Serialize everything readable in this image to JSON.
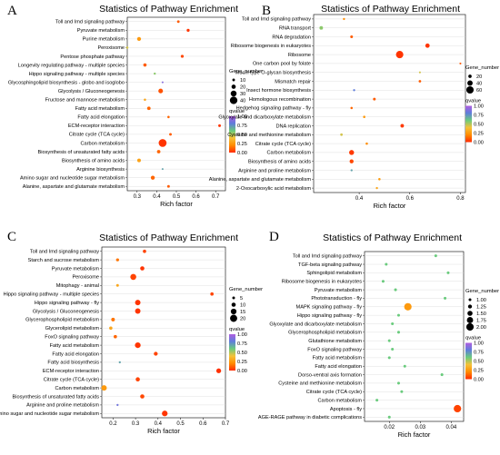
{
  "chart_data": [
    {
      "type": "scatter",
      "panel": "A",
      "title": "Statistics of Pathway Enrichment",
      "xlabel": "Rich factor",
      "xlim": [
        0.25,
        0.75
      ],
      "xticks": [
        0.3,
        0.4,
        0.5,
        0.6,
        0.7
      ],
      "xtick_labels": [
        "0.3",
        "0.4",
        "0.5",
        "0.6",
        "0.7"
      ],
      "size_legend_title": "Gene_number",
      "size_levels": [
        10,
        20,
        30,
        40
      ],
      "size_domain": [
        5,
        45
      ],
      "color_legend_title": "qvalue",
      "color_ticks": [
        "1.00",
        "0.75",
        "0.50",
        "0.25",
        "0.00"
      ],
      "categories": [
        "Toll and Imd signaling pathway",
        "Pyruvate metabolism",
        "Purine metabolism",
        "Peroxisome",
        "Pentose phosphate pathway",
        "Longevity regulating pathway - multiple species",
        "Hippo signaling pathway - multiple species",
        "Glycosphingolipid biosynthesis - globo and isoglobo",
        "Glycolysis / Gluconeogenesis",
        "Fructose and mannose metabolism",
        "Fatty acid metabolism",
        "Fatty acid elongation",
        "ECM-receptor interaction",
        "Citrate cycle (TCA cycle)",
        "Carbon metabolism",
        "Biosynthesis of unsaturated fatty acids",
        "Biosynthesis of amino acids",
        "Arginine biosynthesis",
        "Amino sugar and nucleotide sugar metabolism",
        "Alanine, aspartate and glutamate metabolism"
      ],
      "points": [
        {
          "x": 0.51,
          "size": 10,
          "q": 0.1
        },
        {
          "x": 0.56,
          "size": 12,
          "q": 0.02
        },
        {
          "x": 0.31,
          "size": 18,
          "q": 0.25
        },
        {
          "x": 0.25,
          "size": 8,
          "q": 0.45
        },
        {
          "x": 0.53,
          "size": 12,
          "q": 0.06
        },
        {
          "x": 0.34,
          "size": 14,
          "q": 0.1
        },
        {
          "x": 0.39,
          "size": 7,
          "q": 0.55
        },
        {
          "x": 0.43,
          "size": 5,
          "q": 0.9
        },
        {
          "x": 0.42,
          "size": 22,
          "q": 0.08
        },
        {
          "x": 0.34,
          "size": 8,
          "q": 0.3
        },
        {
          "x": 0.36,
          "size": 15,
          "q": 0.12
        },
        {
          "x": 0.46,
          "size": 8,
          "q": 0.12
        },
        {
          "x": 0.72,
          "size": 10,
          "q": 0.02
        },
        {
          "x": 0.47,
          "size": 10,
          "q": 0.1
        },
        {
          "x": 0.43,
          "size": 42,
          "q": 0.02
        },
        {
          "x": 0.41,
          "size": 15,
          "q": 0.12
        },
        {
          "x": 0.31,
          "size": 16,
          "q": 0.28
        },
        {
          "x": 0.43,
          "size": 5,
          "q": 0.7
        },
        {
          "x": 0.38,
          "size": 18,
          "q": 0.12
        },
        {
          "x": 0.46,
          "size": 10,
          "q": 0.1
        }
      ]
    },
    {
      "type": "scatter",
      "panel": "B",
      "title": "Statistics of Pathway Enrichment",
      "xlabel": "Rich factor",
      "xlim": [
        0.22,
        0.82
      ],
      "xticks": [
        0.4,
        0.6,
        0.8
      ],
      "xtick_labels": [
        "0.4",
        "0.6",
        "0.8"
      ],
      "size_legend_title": "Gene_number",
      "size_levels": [
        20,
        40,
        60
      ],
      "size_domain": [
        5,
        70
      ],
      "color_legend_title": "qvalue",
      "color_ticks": [
        "1.00",
        "0.75",
        "0.50",
        "0.25",
        "0.00"
      ],
      "categories": [
        "Toll and Imd signaling pathway",
        "RNA transport",
        "RNA degradation",
        "Ribosome biogenesis in eukaryotes",
        "Ribosome",
        "One carbon pool by folate",
        "Mucin type O-glycan biosynthesis",
        "Mismatch repair",
        "Insect hormone biosynthesis",
        "Homologous recombination",
        "Hedgehog signaling pathway - fly",
        "Glyoxylate and dicarboxylate metabolism",
        "DNA replication",
        "Cysteine and methionine metabolism",
        "Citrate cycle (TCA cycle)",
        "Carbon metabolism",
        "Biosynthesis of amino acids",
        "Arginine and proline metabolism",
        "Alanine, aspartate and glutamate metabolism",
        "2-Oxocarboxylic acid metabolism"
      ],
      "points": [
        {
          "x": 0.34,
          "size": 8,
          "q": 0.2
        },
        {
          "x": 0.25,
          "size": 22,
          "q": 0.55
        },
        {
          "x": 0.37,
          "size": 14,
          "q": 0.1
        },
        {
          "x": 0.67,
          "size": 30,
          "q": 0.02
        },
        {
          "x": 0.56,
          "size": 60,
          "q": 0.02
        },
        {
          "x": 0.8,
          "size": 6,
          "q": 0.1
        },
        {
          "x": 0.64,
          "size": 6,
          "q": 0.45
        },
        {
          "x": 0.64,
          "size": 12,
          "q": 0.1
        },
        {
          "x": 0.38,
          "size": 8,
          "q": 0.8
        },
        {
          "x": 0.46,
          "size": 14,
          "q": 0.1
        },
        {
          "x": 0.37,
          "size": 10,
          "q": 0.12
        },
        {
          "x": 0.42,
          "size": 10,
          "q": 0.25
        },
        {
          "x": 0.57,
          "size": 22,
          "q": 0.03
        },
        {
          "x": 0.33,
          "size": 12,
          "q": 0.45
        },
        {
          "x": 0.43,
          "size": 10,
          "q": 0.2
        },
        {
          "x": 0.37,
          "size": 36,
          "q": 0.03
        },
        {
          "x": 0.37,
          "size": 26,
          "q": 0.06
        },
        {
          "x": 0.37,
          "size": 8,
          "q": 0.7
        },
        {
          "x": 0.48,
          "size": 10,
          "q": 0.25
        },
        {
          "x": 0.47,
          "size": 8,
          "q": 0.3
        }
      ]
    },
    {
      "type": "scatter",
      "panel": "C",
      "title": "Statistics of Pathway Enrichment",
      "xlabel": "Rich factor",
      "xlim": [
        0.15,
        0.7
      ],
      "xticks": [
        0.2,
        0.3,
        0.4,
        0.5,
        0.6,
        0.7
      ],
      "xtick_labels": [
        "0.2",
        "0.3",
        "0.4",
        "0.5",
        "0.6",
        "0.7"
      ],
      "size_legend_title": "Gene_number",
      "size_levels": [
        5,
        10,
        15,
        20
      ],
      "size_domain": [
        2,
        24
      ],
      "color_legend_title": "qvalue",
      "color_ticks": [
        "1.00",
        "0.75",
        "0.50",
        "0.25",
        "0.00"
      ],
      "categories": [
        "Toll and Imd signaling pathway",
        "Starch and sucrose metabolism",
        "Pyruvate metabolism",
        "Peroxisome",
        "Mitophagy - animal",
        "Hippo signaling pathway - multiple species",
        "Hippo signaling pathway - fly",
        "Glycolysis / Gluconeogenesis",
        "Glycerophospholipid metabolism",
        "Glycerolipid metabolism",
        "FoxO signaling pathway",
        "Fatty acid metabolism",
        "Fatty acid elongation",
        "Fatty acid biosynthesis",
        "ECM-receptor interaction",
        "Citrate cycle (TCA cycle)",
        "Carbon metabolism",
        "Biosynthesis of unsaturated fatty acids",
        "Arginine and proline metabolism",
        "Amino sugar and nucleotide sugar metabolism"
      ],
      "points": [
        {
          "x": 0.34,
          "size": 7,
          "q": 0.05
        },
        {
          "x": 0.22,
          "size": 6,
          "q": 0.15
        },
        {
          "x": 0.33,
          "size": 10,
          "q": 0.02
        },
        {
          "x": 0.29,
          "size": 16,
          "q": 0.05
        },
        {
          "x": 0.22,
          "size": 5,
          "q": 0.3
        },
        {
          "x": 0.64,
          "size": 7,
          "q": 0.05
        },
        {
          "x": 0.31,
          "size": 14,
          "q": 0.02
        },
        {
          "x": 0.31,
          "size": 14,
          "q": 0.02
        },
        {
          "x": 0.2,
          "size": 8,
          "q": 0.15
        },
        {
          "x": 0.19,
          "size": 7,
          "q": 0.3
        },
        {
          "x": 0.21,
          "size": 7,
          "q": 0.12
        },
        {
          "x": 0.31,
          "size": 15,
          "q": 0.02
        },
        {
          "x": 0.39,
          "size": 9,
          "q": 0.05
        },
        {
          "x": 0.23,
          "size": 3,
          "q": 0.7
        },
        {
          "x": 0.67,
          "size": 12,
          "q": 0.01
        },
        {
          "x": 0.31,
          "size": 10,
          "q": 0.05
        },
        {
          "x": 0.16,
          "size": 14,
          "q": 0.25
        },
        {
          "x": 0.33,
          "size": 10,
          "q": 0.06
        },
        {
          "x": 0.22,
          "size": 3,
          "q": 0.85
        },
        {
          "x": 0.43,
          "size": 15,
          "q": 0.02
        }
      ]
    },
    {
      "type": "scatter",
      "panel": "D",
      "title": "Statistics of Pathway Enrichment",
      "xlabel": "Rich factor",
      "xlim": [
        0.012,
        0.044
      ],
      "xticks": [
        0.02,
        0.03,
        0.04
      ],
      "xtick_labels": [
        "0.02",
        "0.03",
        "0.04"
      ],
      "size_legend_title": "Gene_number",
      "size_levels": [
        1.0,
        1.25,
        1.5,
        1.75,
        2.0
      ],
      "size_legend_labels": [
        "1.00",
        "1.25",
        "1.50",
        "1.75",
        "2.00"
      ],
      "size_domain": [
        0.8,
        2.2
      ],
      "color_legend_title": "qvalue",
      "color_ticks": [
        "1.00",
        "0.75",
        "0.50",
        "0.25",
        "0.00"
      ],
      "categories": [
        "Toll and Imd signaling pathway",
        "TGF-beta signaling pathway",
        "Sphingolipid metabolism",
        "Ribosome biogenesis in eukaryotes",
        "Pyruvate metabolism",
        "Phototransduction - fly",
        "MAPK signaling pathway - fly",
        "Hippo signaling pathway - fly",
        "Glyoxylate and dicarboxylate metabolism",
        "Glycerophospholipid metabolism",
        "Glutathione metabolism",
        "FoxO signaling pathway",
        "Fatty acid metabolism",
        "Fatty acid elongation",
        "Dorso-ventral axis formation",
        "Cysteine and methionine metabolism",
        "Citrate cycle (TCA cycle)",
        "Carbon metabolism",
        "Apoptosis - fly",
        "AGE-RAGE pathway in diabetic complications"
      ],
      "points": [
        {
          "x": 0.035,
          "size": 1.0,
          "q": 0.6
        },
        {
          "x": 0.019,
          "size": 1.0,
          "q": 0.6
        },
        {
          "x": 0.039,
          "size": 1.0,
          "q": 0.6
        },
        {
          "x": 0.018,
          "size": 1.0,
          "q": 0.6
        },
        {
          "x": 0.022,
          "size": 1.0,
          "q": 0.6
        },
        {
          "x": 0.038,
          "size": 1.0,
          "q": 0.6
        },
        {
          "x": 0.026,
          "size": 2.0,
          "q": 0.25
        },
        {
          "x": 0.023,
          "size": 1.0,
          "q": 0.6
        },
        {
          "x": 0.021,
          "size": 1.0,
          "q": 0.6
        },
        {
          "x": 0.023,
          "size": 1.0,
          "q": 0.6
        },
        {
          "x": 0.02,
          "size": 1.0,
          "q": 0.6
        },
        {
          "x": 0.021,
          "size": 1.0,
          "q": 0.6
        },
        {
          "x": 0.02,
          "size": 1.0,
          "q": 0.6
        },
        {
          "x": 0.025,
          "size": 1.0,
          "q": 0.6
        },
        {
          "x": 0.037,
          "size": 1.0,
          "q": 0.6
        },
        {
          "x": 0.023,
          "size": 1.0,
          "q": 0.6
        },
        {
          "x": 0.024,
          "size": 1.0,
          "q": 0.6
        },
        {
          "x": 0.016,
          "size": 1.0,
          "q": 0.6
        },
        {
          "x": 0.042,
          "size": 2.0,
          "q": 0.05
        },
        {
          "x": 0.02,
          "size": 1.0,
          "q": 0.6
        }
      ]
    }
  ],
  "colors": {
    "scale": [
      "#ff2a00",
      "#ff8c00",
      "#f5c23a",
      "#6acb7d",
      "#5f7ddb",
      "#b05fe0"
    ],
    "grid": "#d8d8d8",
    "axis": "#000000"
  }
}
